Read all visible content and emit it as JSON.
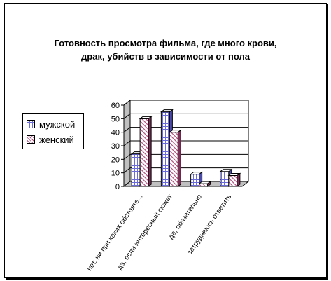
{
  "chart_data": {
    "type": "bar",
    "title_lines": [
      "Готовность просмотра фильма, где много крови,",
      "драк, убийств в зависимости от пола"
    ],
    "categories": [
      "нет, ни при каких обстояте...",
      "да, если интересный сюжет",
      "да, обязательно",
      "затрудняюсь ответить"
    ],
    "series": [
      {
        "name": "мужской",
        "values": [
          24,
          55,
          9,
          11
        ],
        "color": "#6b6bdd"
      },
      {
        "name": "женский",
        "values": [
          50,
          40,
          2,
          8
        ],
        "color": "#b04a7a"
      }
    ],
    "ylim": [
      0,
      60
    ],
    "yticks": [
      0,
      10,
      20,
      30,
      40,
      50,
      60
    ],
    "grid": true,
    "legend_position": "left"
  }
}
